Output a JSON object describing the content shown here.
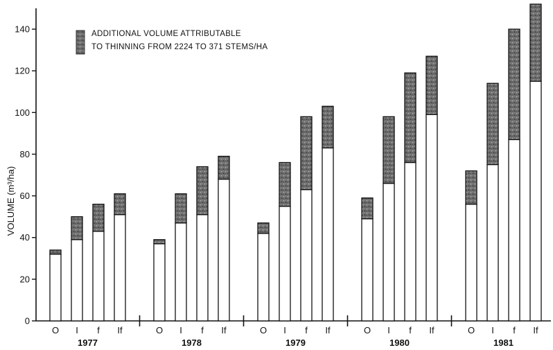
{
  "chart_data": {
    "type": "bar",
    "stacked": true,
    "ylabel": "VOLUME (m³/ha)",
    "ylim": [
      0,
      150
    ],
    "yticks": [
      0,
      20,
      40,
      60,
      80,
      100,
      120,
      140
    ],
    "grid": false,
    "legend": {
      "line1": "ADDITIONAL VOLUME ATTRIBUTABLE",
      "line2": "TO THINNING FROM 2224 TO 371 STEMS/HA",
      "placement": "top-left"
    },
    "groups": [
      {
        "year": "1977",
        "bars": [
          {
            "label": "O",
            "base": 32,
            "total": 34
          },
          {
            "label": "I",
            "base": 39,
            "total": 50
          },
          {
            "label": "f",
            "base": 43,
            "total": 56
          },
          {
            "label": "If",
            "base": 51,
            "total": 61
          }
        ]
      },
      {
        "year": "1978",
        "bars": [
          {
            "label": "O",
            "base": 37,
            "total": 39
          },
          {
            "label": "I",
            "base": 47,
            "total": 61
          },
          {
            "label": "f",
            "base": 51,
            "total": 74
          },
          {
            "label": "If",
            "base": 68,
            "total": 79
          }
        ]
      },
      {
        "year": "1979",
        "bars": [
          {
            "label": "O",
            "base": 42,
            "total": 47
          },
          {
            "label": "I",
            "base": 55,
            "total": 76
          },
          {
            "label": "f",
            "base": 63,
            "total": 98
          },
          {
            "label": "If",
            "base": 83,
            "total": 103
          }
        ]
      },
      {
        "year": "1980",
        "bars": [
          {
            "label": "O",
            "base": 49,
            "total": 59
          },
          {
            "label": "I",
            "base": 66,
            "total": 98
          },
          {
            "label": "f",
            "base": 76,
            "total": 119
          },
          {
            "label": "If",
            "base": 99,
            "total": 127
          }
        ]
      },
      {
        "year": "1981",
        "bars": [
          {
            "label": "O",
            "base": 56,
            "total": 72
          },
          {
            "label": "I",
            "base": 75,
            "total": 114
          },
          {
            "label": "f",
            "base": 87,
            "total": 140
          },
          {
            "label": "If",
            "base": 115,
            "total": 152
          }
        ]
      }
    ],
    "colors": {
      "base_fill": "#ffffff",
      "additional_fill": "#777777",
      "outline": "#111111"
    }
  }
}
